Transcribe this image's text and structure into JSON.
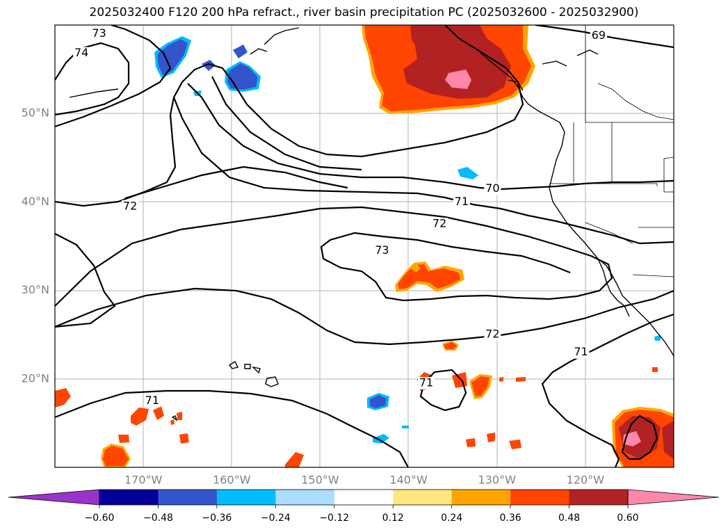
{
  "title": "2025032400 F120 200 hPa refract., river basin precipitation PC (2025032600 - 2025032900)",
  "map": {
    "lat_labels": [
      {
        "text": "50°N",
        "lat": 50
      },
      {
        "text": "40°N",
        "lat": 40
      },
      {
        "text": "30°N",
        "lat": 30
      },
      {
        "text": "20°N",
        "lat": 20
      }
    ],
    "lon_labels": [
      {
        "text": "170°W",
        "lon": -170
      },
      {
        "text": "160°W",
        "lon": -160
      },
      {
        "text": "150°W",
        "lon": -150
      },
      {
        "text": "140°W",
        "lon": -140
      },
      {
        "text": "130°W",
        "lon": -130
      },
      {
        "text": "120°W",
        "lon": -120
      }
    ],
    "extent": {
      "lon_min": -180,
      "lon_max": -110,
      "lat_min": 10,
      "lat_max": 60
    },
    "contour_labels": [
      {
        "text": "73",
        "lon": -175,
        "lat": 59
      },
      {
        "text": "74",
        "lon": -177,
        "lat": 56.8
      },
      {
        "text": "72",
        "lon": -171.5,
        "lat": 39.5
      },
      {
        "text": "70",
        "lon": -130.5,
        "lat": 41.5
      },
      {
        "text": "71",
        "lon": -134,
        "lat": 40
      },
      {
        "text": "72",
        "lon": -136.5,
        "lat": 37.5
      },
      {
        "text": "73",
        "lon": -143,
        "lat": 34.5
      },
      {
        "text": "72",
        "lon": -130.5,
        "lat": 25
      },
      {
        "text": "71",
        "lon": -120.5,
        "lat": 23
      },
      {
        "text": "71",
        "lon": -138,
        "lat": 19.5
      },
      {
        "text": "71",
        "lon": -169,
        "lat": 17.5
      },
      {
        "text": "69",
        "lon": -118.5,
        "lat": 58.8
      }
    ]
  },
  "colorbar": {
    "ticks": [
      "−0.60",
      "−0.48",
      "−0.36",
      "−0.24",
      "−0.12",
      "0.12",
      "0.24",
      "0.36",
      "0.48",
      "0.60"
    ],
    "colors": [
      "#9933cc",
      "#000099",
      "#3355cc",
      "#00bbff",
      "#aaddff",
      "#ffffff",
      "#ffe680",
      "#ffa500",
      "#ff4500",
      "#b22222",
      "#ff88aa"
    ]
  }
}
